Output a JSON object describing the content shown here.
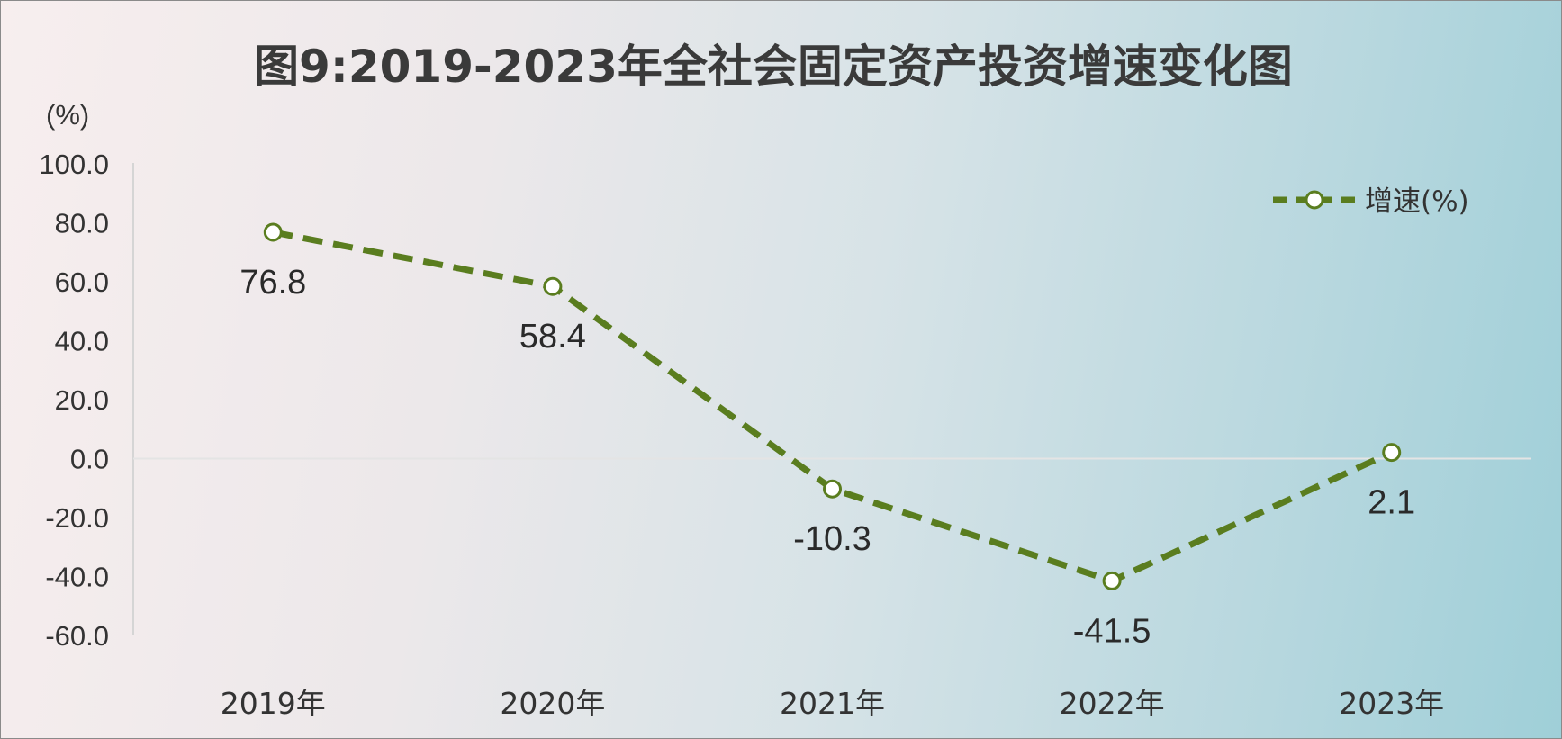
{
  "chart_data": {
    "type": "line",
    "title": "图9:2019-2023年全社会固定资产投资增速变化图",
    "y_unit_label": "(%)",
    "categories": [
      "2019年",
      "2020年",
      "2021年",
      "2022年",
      "2023年"
    ],
    "series": [
      {
        "name": "增速(%)",
        "values": [
          76.8,
          58.4,
          -10.3,
          -41.5,
          2.1
        ]
      }
    ],
    "data_labels": [
      "76.8",
      "58.4",
      "-10.3",
      "-41.5",
      "2.1"
    ],
    "y_ticks": [
      "100.0",
      "80.0",
      "60.0",
      "40.0",
      "20.0",
      "0.0",
      "-20.0",
      "-40.0",
      "-60.0"
    ],
    "ylim": [
      -60,
      100
    ],
    "grid": false,
    "legend_position": "top-right",
    "line_color": "#5a7d1f",
    "line_style": "dashed",
    "marker_fill": "#ffffff"
  }
}
